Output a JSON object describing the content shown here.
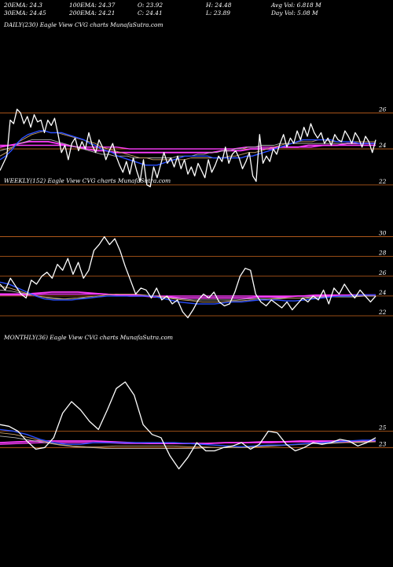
{
  "header": {
    "row1": [
      {
        "label": "20EMA: 24.3"
      },
      {
        "label": "100EMA: 24.37"
      },
      {
        "label": "O: 23.92"
      },
      {
        "label": "H: 24.48"
      },
      {
        "label": "Avg Vol: 6.818  M"
      }
    ],
    "row2": [
      {
        "label": "30EMA: 24.45"
      },
      {
        "label": "200EMA: 24.21"
      },
      {
        "label": "C: 24.41"
      },
      {
        "label": "L: 23.89"
      },
      {
        "label": "Day Vol: 5.08  M"
      }
    ]
  },
  "panels": [
    {
      "label": "DAILY(230) Eagle   View  CVG charts MunafaSutra.com"
    },
    {
      "label": "WEEKLY(152) Eagle   View  CVG charts MunafaSutra.com"
    },
    {
      "label": "MONTHLY(36) Eagle   View  CVG charts MunafaSutra.com"
    }
  ],
  "colors": {
    "background": "#000000",
    "grid": "#c8641e",
    "price": "#ffffff",
    "ema_fast": "#2a4fff",
    "ema_mid": "#c8a068",
    "ema_slow": "#b0b0b0",
    "ema_long": "#ff3cff",
    "ema_200": "#ff3cff"
  },
  "chart_data": [
    {
      "type": "line",
      "ylim": [
        21.6,
        26.8
      ],
      "yticks": [
        22,
        24,
        26
      ],
      "series": [
        {
          "values": [
            22.8,
            23.2,
            23.6,
            25.6,
            25.4,
            26.2,
            26.0,
            25.4,
            25.8,
            25.2,
            25.9,
            25.5,
            25.6,
            24.9,
            25.6,
            25.3,
            25.7,
            24.8,
            23.8,
            24.2,
            23.4,
            24.3,
            24.6,
            23.9,
            24.4,
            24.0,
            24.9,
            24.2,
            23.8,
            24.5,
            24.1,
            23.4,
            23.9,
            24.3,
            23.6,
            23.1,
            22.7,
            23.3,
            22.6,
            23.5,
            22.8,
            22.2,
            23.4,
            22.0,
            21.9,
            23.0,
            22.4,
            23.1,
            23.8,
            23.2,
            23.5,
            23.0,
            23.6,
            22.9,
            23.4,
            22.6,
            23.0,
            22.5,
            23.2,
            22.8,
            22.4,
            23.4,
            22.7,
            23.1,
            23.6,
            23.3,
            24.1,
            23.2,
            23.7,
            23.9,
            23.5,
            22.9,
            23.3,
            23.8,
            22.5,
            22.2,
            24.8,
            23.2,
            23.6,
            23.3,
            24.0,
            23.7,
            24.3,
            24.8,
            24.1,
            24.6,
            24.3,
            25.0,
            24.5,
            25.2,
            24.7,
            25.4,
            24.9,
            24.6,
            24.9,
            24.3,
            24.6,
            24.2,
            24.8,
            24.5,
            24.4,
            25.0,
            24.7,
            24.3,
            24.9,
            24.6,
            24.1,
            24.7,
            24.4,
            23.8,
            24.5
          ]
        },
        {
          "values": [
            23.4,
            23.6,
            23.9,
            24.3,
            24.6,
            24.8,
            24.9,
            25.0,
            25.0,
            24.9,
            24.9,
            24.9,
            24.8,
            24.7,
            24.6,
            24.5,
            24.3,
            24.2,
            24.0,
            23.9,
            23.8,
            23.6,
            23.5,
            23.4,
            23.3,
            23.2,
            23.1,
            23.1,
            23.1,
            23.2,
            23.3,
            23.4,
            23.5,
            23.6,
            23.6,
            23.6,
            23.6,
            23.6,
            23.5,
            23.5,
            23.5,
            23.5,
            23.5,
            23.5,
            23.6,
            23.6,
            23.7,
            23.8,
            23.9,
            24.0,
            24.1,
            24.2,
            24.3,
            24.4,
            24.5,
            24.5,
            24.5,
            24.5,
            24.5,
            24.5,
            24.4,
            24.4,
            24.4,
            24.4,
            24.3,
            24.3,
            24.3,
            24.3
          ]
        },
        {
          "values": [
            23.6,
            23.8,
            24.1,
            24.4,
            24.6,
            24.8,
            24.9,
            25.0,
            24.9,
            24.9,
            24.8,
            24.7,
            24.6,
            24.5,
            24.4,
            24.3,
            24.1,
            24.0,
            23.9,
            23.8,
            23.7,
            23.6,
            23.5,
            23.5,
            23.4,
            23.4,
            23.4,
            23.4,
            23.4,
            23.4,
            23.5,
            23.5,
            23.5,
            23.5,
            23.5,
            23.5,
            23.6,
            23.6,
            23.7,
            23.8,
            23.8,
            23.9,
            24.0,
            24.1,
            24.2,
            24.3,
            24.3,
            24.4,
            24.4,
            24.4,
            24.5,
            24.5,
            24.4,
            24.4,
            24.4,
            24.4,
            24.4,
            24.4,
            24.4,
            24.4
          ]
        },
        {
          "values": [
            23.9,
            24.0,
            24.1,
            24.3,
            24.4,
            24.5,
            24.5,
            24.5,
            24.5,
            24.4,
            24.3,
            24.2,
            24.1,
            24.0,
            23.9,
            23.8,
            23.7,
            23.7,
            23.6,
            23.6,
            23.6,
            23.5,
            23.5,
            23.5,
            23.5,
            23.5,
            23.5,
            23.5,
            23.6,
            23.6,
            23.6,
            23.7,
            23.7,
            23.8,
            23.8,
            23.9,
            23.9,
            24.0,
            24.0,
            24.1,
            24.1,
            24.2,
            24.2,
            24.2,
            24.3,
            24.3,
            24.3,
            24.3,
            24.3,
            24.3,
            24.3,
            24.3,
            24.3,
            24.3,
            24.3,
            24.3,
            24.3,
            24.3,
            24.3,
            24.3
          ]
        },
        {
          "values": [
            24.1,
            24.2,
            24.3,
            24.4,
            24.4,
            24.4,
            24.3,
            24.2,
            24.1,
            24.0,
            23.9,
            23.9,
            23.8,
            23.8,
            23.8,
            23.8,
            23.8,
            23.8,
            23.8,
            23.8,
            23.8,
            23.8,
            23.8,
            23.9,
            23.9,
            23.9,
            24.0,
            24.0,
            24.0,
            24.1,
            24.1,
            24.1,
            24.2,
            24.2,
            24.2,
            24.2,
            24.3,
            24.3,
            24.3,
            24.3
          ]
        },
        {
          "values": [
            24.2,
            24.2,
            24.2,
            24.2,
            24.2,
            24.2,
            24.1,
            24.1,
            24.1,
            24.1,
            24.0,
            24.0,
            24.0,
            24.0,
            24.0,
            24.0,
            24.0,
            24.0,
            24.0,
            24.1,
            24.1,
            24.1,
            24.1,
            24.1,
            24.1,
            24.2,
            24.2,
            24.2,
            24.2,
            24.2
          ]
        }
      ]
    },
    {
      "type": "line",
      "ylim": [
        21.6,
        31.0
      ],
      "yticks": [
        22,
        24,
        26,
        28,
        30
      ],
      "series": [
        {
          "values": [
            25.2,
            24.6,
            25.8,
            25.0,
            24.2,
            23.8,
            25.6,
            25.2,
            26.0,
            26.4,
            25.8,
            27.2,
            26.6,
            27.8,
            26.2,
            27.4,
            25.8,
            26.6,
            28.6,
            29.2,
            30.0,
            29.2,
            29.8,
            28.6,
            27.0,
            25.6,
            24.2,
            24.8,
            24.6,
            23.8,
            24.8,
            23.6,
            24.0,
            23.2,
            23.6,
            22.4,
            21.8,
            22.6,
            23.6,
            24.2,
            23.8,
            24.4,
            23.4,
            23.0,
            23.2,
            24.4,
            26.0,
            26.8,
            26.6,
            24.2,
            23.4,
            23.0,
            23.6,
            23.2,
            22.8,
            23.4,
            22.6,
            23.2,
            23.8,
            23.4,
            24.0,
            23.6,
            24.6,
            23.2,
            24.8,
            24.2,
            25.2,
            24.4,
            23.8,
            24.6,
            24.0,
            23.4,
            24.0
          ]
        },
        {
          "values": [
            25.4,
            25.2,
            24.8,
            24.4,
            24.0,
            23.7,
            23.6,
            23.6,
            23.6,
            23.7,
            23.8,
            23.9,
            24.0,
            24.0,
            24.0,
            24.0,
            24.0,
            24.0,
            23.8,
            23.6,
            23.4,
            23.3,
            23.2,
            23.2,
            23.2,
            23.3,
            23.4,
            23.4,
            23.5,
            23.6,
            23.6,
            23.6,
            23.5,
            23.5,
            23.6,
            23.7,
            23.8,
            23.9,
            24.0,
            24.0,
            24.1,
            24.1,
            24.1
          ]
        },
        {
          "values": [
            25.0,
            24.8,
            24.5,
            24.2,
            24.0,
            23.8,
            23.7,
            23.7,
            23.8,
            23.9,
            24.0,
            24.1,
            24.2,
            24.2,
            24.2,
            24.1,
            24.0,
            23.9,
            23.7,
            23.6,
            23.5,
            23.4,
            23.4,
            23.4,
            23.5,
            23.5,
            23.6,
            23.6,
            23.7,
            23.7,
            23.8,
            23.8,
            23.8,
            23.8,
            23.9,
            23.9,
            24.0,
            24.0,
            24.0,
            24.0
          ]
        },
        {
          "values": [
            24.6,
            24.5,
            24.3,
            24.1,
            23.9,
            23.8,
            23.7,
            23.8,
            23.8,
            23.9,
            24.0,
            24.0,
            24.0,
            24.0,
            24.0,
            23.9,
            23.8,
            23.7,
            23.6,
            23.6,
            23.6,
            23.6,
            23.6,
            23.7,
            23.7,
            23.7,
            23.8,
            23.8,
            23.8,
            23.9,
            23.9,
            23.9,
            23.9,
            23.9,
            24.0,
            24.0
          ]
        },
        {
          "values": [
            24.2,
            24.2,
            24.2,
            24.3,
            24.4,
            24.4,
            24.4,
            24.3,
            24.2,
            24.1,
            24.0,
            24.0,
            23.9,
            23.9,
            23.8,
            23.8,
            23.8,
            23.8,
            23.8,
            23.8,
            23.9,
            23.9,
            23.9,
            24.0,
            24.0,
            24.0,
            24.0,
            24.1,
            24.1,
            24.1
          ]
        },
        {
          "values": [
            24.1,
            24.1,
            24.1,
            24.2,
            24.2,
            24.2,
            24.2,
            24.2,
            24.1,
            24.1,
            24.0,
            24.0,
            24.0,
            24.0,
            24.0,
            24.0,
            24.0,
            24.0,
            24.0,
            24.0,
            24.0,
            24.1,
            24.1,
            24.1,
            24.1,
            24.1
          ]
        }
      ]
    },
    {
      "type": "line",
      "ylim": [
        19.0,
        31.0
      ],
      "yticks": [
        23,
        25
      ],
      "series": [
        {
          "values": [
            25.8,
            25.6,
            25.0,
            23.8,
            22.8,
            23.0,
            24.2,
            27.2,
            28.6,
            27.6,
            26.2,
            25.2,
            27.6,
            30.2,
            31.0,
            29.4,
            25.8,
            24.6,
            24.2,
            22.0,
            20.4,
            21.8,
            23.6,
            22.6,
            22.6,
            23.0,
            23.2,
            23.6,
            22.8,
            23.4,
            25.0,
            24.8,
            23.4,
            22.6,
            23.0,
            23.6,
            23.4,
            23.6,
            24.0,
            23.8,
            23.2,
            23.6,
            24.2
          ]
        },
        {
          "values": [
            25.2,
            25.0,
            24.6,
            24.0,
            23.6,
            23.4,
            23.4,
            23.6,
            23.6,
            23.6,
            23.6,
            23.6,
            23.6,
            23.6,
            23.5,
            23.4,
            23.3,
            23.2,
            23.1,
            23.2,
            23.3,
            23.3,
            23.4,
            23.5,
            23.6,
            23.7,
            23.8,
            23.9,
            23.9
          ]
        },
        {
          "values": [
            24.8,
            24.6,
            24.2,
            23.8,
            23.4,
            23.2,
            23.1,
            23.1,
            23.2,
            23.2,
            23.2,
            23.2,
            23.2,
            23.1,
            23.1,
            23.0,
            23.0,
            23.0,
            23.1,
            23.2,
            23.3,
            23.4,
            23.5,
            23.6,
            23.6,
            23.7,
            23.7
          ]
        },
        {
          "values": [
            24.4,
            24.2,
            23.9,
            23.6,
            23.3,
            23.1,
            23.0,
            22.9,
            22.9,
            22.9,
            22.9,
            22.9,
            22.9,
            22.9,
            23.0,
            23.0,
            23.0,
            23.1,
            23.2,
            23.3,
            23.4,
            23.5,
            23.5,
            23.6,
            23.6,
            23.7
          ]
        },
        {
          "values": [
            23.6,
            23.7,
            23.8,
            23.8,
            23.8,
            23.8,
            23.7,
            23.6,
            23.5,
            23.5,
            23.5,
            23.5,
            23.6,
            23.6,
            23.7,
            23.7,
            23.8,
            23.8,
            23.8,
            23.8,
            23.9
          ]
        },
        {
          "values": [
            23.4,
            23.5,
            23.6,
            23.6,
            23.6,
            23.6,
            23.5,
            23.5,
            23.5,
            23.5,
            23.5,
            23.6,
            23.6,
            23.6,
            23.7,
            23.7,
            23.7,
            23.7,
            23.8
          ]
        }
      ]
    }
  ]
}
